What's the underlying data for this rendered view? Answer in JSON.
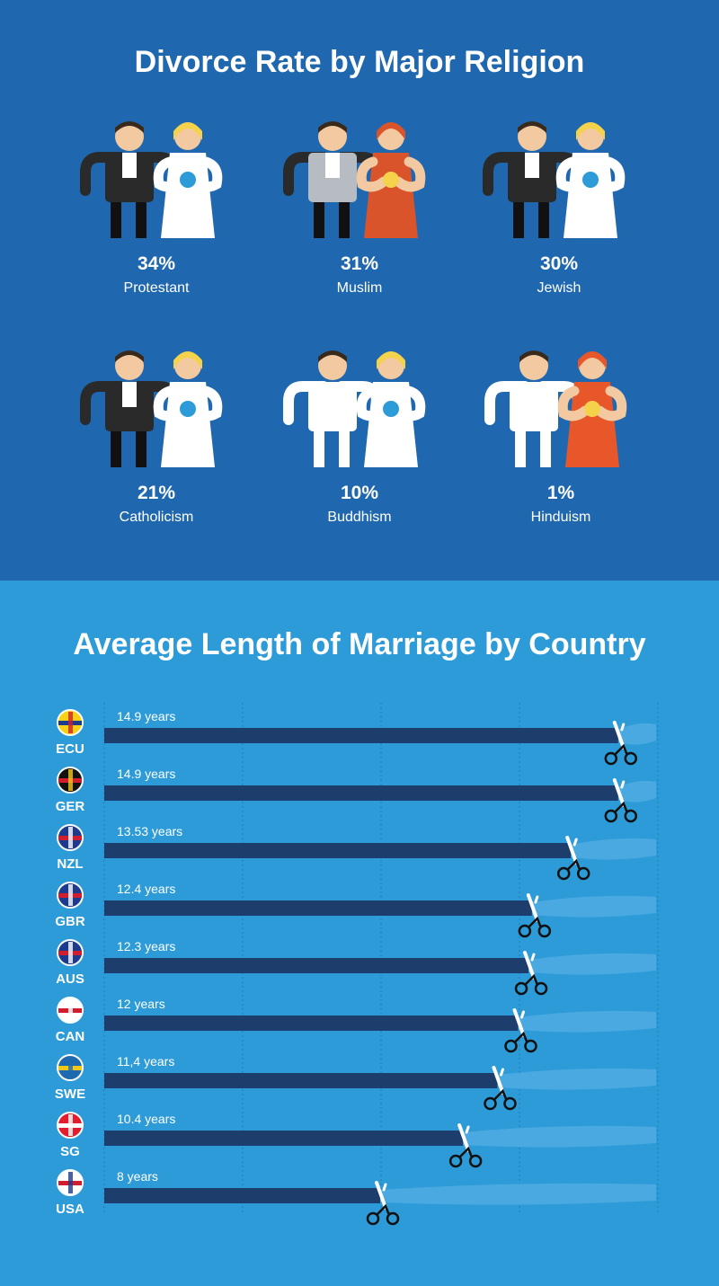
{
  "religion_section": {
    "title": "Divorce Rate by Major Religion",
    "items": [
      {
        "pct": "34%",
        "label": "Protestant",
        "accent": "#2a2a2a",
        "bride": "#ffffff"
      },
      {
        "pct": "31%",
        "label": "Muslim",
        "accent": "#b7bcc2",
        "bride": "#d9532b"
      },
      {
        "pct": "30%",
        "label": "Jewish",
        "accent": "#2a2a2a",
        "bride": "#ffffff"
      },
      {
        "pct": "21%",
        "label": "Catholicism",
        "accent": "#2a2a2a",
        "bride": "#ffffff"
      },
      {
        "pct": "10%",
        "label": "Buddhism",
        "accent": "#ffffff",
        "bride": "#ffffff"
      },
      {
        "pct": "1%",
        "label": "Hinduism",
        "accent": "#ffffff",
        "bride": "#e8572a"
      }
    ]
  },
  "country_section": {
    "title": "Average Length of Marriage by Country"
  },
  "chart_data": {
    "type": "bar",
    "orientation": "horizontal",
    "title": "Average Length of Marriage by Country",
    "categories": [
      "ECU",
      "GER",
      "NZL",
      "GBR",
      "AUS",
      "CAN",
      "SWE",
      "SG",
      "USA"
    ],
    "values": [
      14.9,
      14.9,
      13.53,
      12.4,
      12.3,
      12,
      11.4,
      10.4,
      8
    ],
    "value_labels": [
      "14.9 years",
      "14.9 years",
      "13.53 years",
      "12.4 years",
      "12.3 years",
      "12 years",
      "11,4 years",
      "10.4 years",
      "8 years"
    ],
    "xlim": [
      0,
      16
    ],
    "grid": true,
    "colors": {
      "bar": "#1d3d6c",
      "ribbon": "#4aa9e0",
      "grid": "#1f7cb8"
    }
  }
}
